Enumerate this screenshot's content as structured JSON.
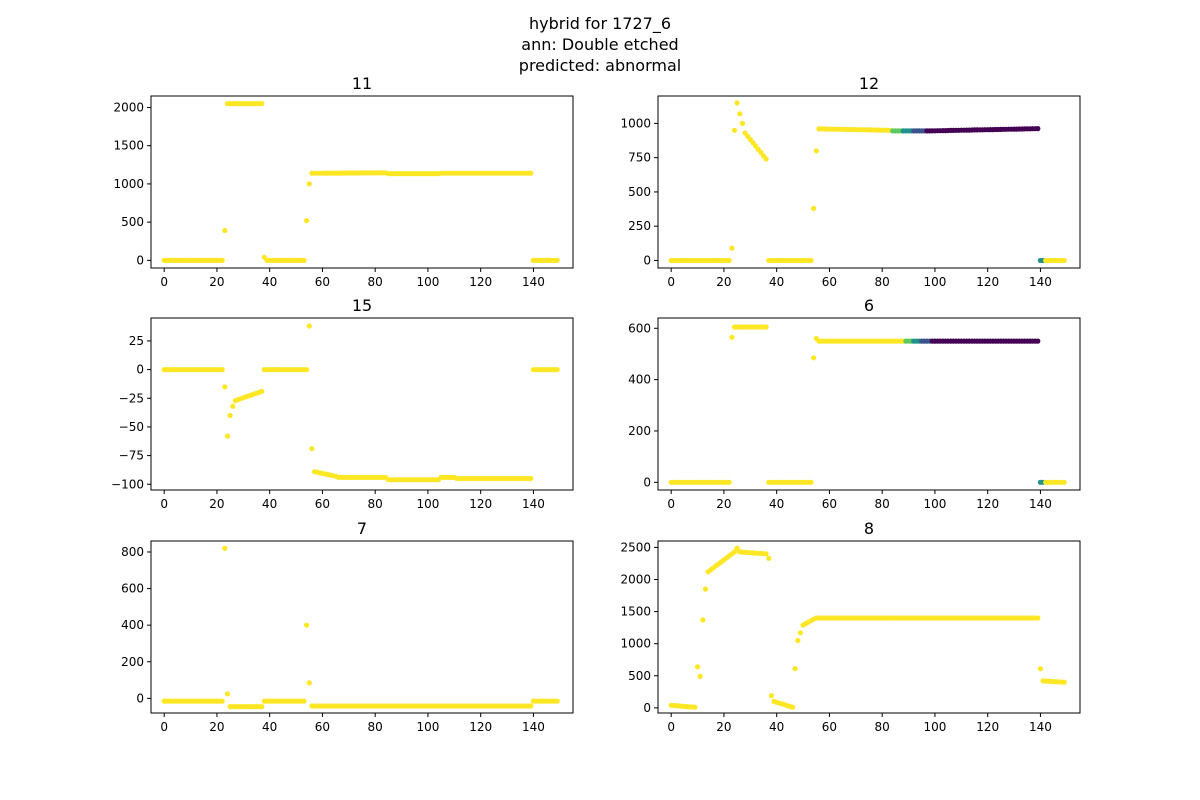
{
  "figure": {
    "title_lines": [
      "hybrid for 1727_6",
      "ann: Double etched",
      "predicted: abnormal"
    ]
  },
  "colors": {
    "yellow": "#fde725",
    "green": "#5ec962",
    "teal": "#21918c",
    "blue": "#3b528b",
    "purple": "#440154",
    "axis": "#000000"
  },
  "chart_data": [
    {
      "type": "scatter",
      "title": "11",
      "xlim": [
        -5,
        155
      ],
      "ylim": [
        -100,
        2150
      ],
      "xticks": [
        0,
        20,
        40,
        60,
        80,
        100,
        120,
        140
      ],
      "yticks": [
        0,
        500,
        1000,
        1500,
        2000
      ],
      "segments": [
        {
          "x0": 0,
          "x1": 22,
          "y0": 0,
          "y1": 0,
          "color": "yellow"
        },
        {
          "x0": 23,
          "x1": 23,
          "y0": 390,
          "y1": 390,
          "color": "yellow"
        },
        {
          "x0": 24,
          "x1": 37,
          "y0": 2050,
          "y1": 2050,
          "color": "yellow"
        },
        {
          "x0": 38,
          "x1": 38,
          "y0": 40,
          "y1": 40,
          "color": "yellow"
        },
        {
          "x0": 39,
          "x1": 53,
          "y0": 0,
          "y1": 0,
          "color": "yellow"
        },
        {
          "x0": 54,
          "x1": 54,
          "y0": 520,
          "y1": 520,
          "color": "yellow"
        },
        {
          "x0": 55,
          "x1": 55,
          "y0": 1000,
          "y1": 1000,
          "color": "yellow"
        },
        {
          "x0": 56,
          "x1": 84,
          "y0": 1140,
          "y1": 1145,
          "color": "yellow"
        },
        {
          "x0": 85,
          "x1": 104,
          "y0": 1135,
          "y1": 1135,
          "color": "yellow"
        },
        {
          "x0": 105,
          "x1": 139,
          "y0": 1140,
          "y1": 1140,
          "color": "yellow"
        },
        {
          "x0": 140,
          "x1": 149,
          "y0": 0,
          "y1": 0,
          "color": "yellow"
        }
      ]
    },
    {
      "type": "scatter",
      "title": "12",
      "xlim": [
        -5,
        155
      ],
      "ylim": [
        -55,
        1200
      ],
      "xticks": [
        0,
        20,
        40,
        60,
        80,
        100,
        120,
        140
      ],
      "yticks": [
        0,
        250,
        500,
        750,
        1000
      ],
      "segments": [
        {
          "x0": 0,
          "x1": 22,
          "y0": 0,
          "y1": 0,
          "color": "yellow"
        },
        {
          "x0": 23,
          "x1": 23,
          "y0": 90,
          "y1": 90,
          "color": "yellow"
        },
        {
          "x0": 24,
          "x1": 24,
          "y0": 950,
          "y1": 950,
          "color": "yellow"
        },
        {
          "x0": 25,
          "x1": 25,
          "y0": 1150,
          "y1": 1150,
          "color": "yellow"
        },
        {
          "x0": 26,
          "x1": 26,
          "y0": 1070,
          "y1": 1070,
          "color": "yellow"
        },
        {
          "x0": 27,
          "x1": 27,
          "y0": 1000,
          "y1": 1000,
          "color": "yellow"
        },
        {
          "x0": 28,
          "x1": 36,
          "y0": 930,
          "y1": 740,
          "color": "yellow"
        },
        {
          "x0": 37,
          "x1": 53,
          "y0": 0,
          "y1": 0,
          "color": "yellow"
        },
        {
          "x0": 54,
          "x1": 54,
          "y0": 380,
          "y1": 380,
          "color": "yellow"
        },
        {
          "x0": 55,
          "x1": 55,
          "y0": 800,
          "y1": 800,
          "color": "yellow"
        },
        {
          "x0": 56,
          "x1": 83,
          "y0": 960,
          "y1": 950,
          "color": "yellow"
        },
        {
          "x0": 84,
          "x1": 87,
          "y0": 945,
          "y1": 945,
          "color": "green"
        },
        {
          "x0": 88,
          "x1": 91,
          "y0": 945,
          "y1": 945,
          "color": "teal"
        },
        {
          "x0": 92,
          "x1": 96,
          "y0": 945,
          "y1": 945,
          "color": "blue"
        },
        {
          "x0": 97,
          "x1": 139,
          "y0": 945,
          "y1": 962,
          "color": "purple"
        },
        {
          "x0": 140,
          "x1": 141,
          "y0": 0,
          "y1": 0,
          "color": "teal"
        },
        {
          "x0": 142,
          "x1": 149,
          "y0": 0,
          "y1": 0,
          "color": "yellow"
        }
      ]
    },
    {
      "type": "scatter",
      "title": "15",
      "xlim": [
        -5,
        155
      ],
      "ylim": [
        -105,
        45
      ],
      "xticks": [
        0,
        20,
        40,
        60,
        80,
        100,
        120,
        140
      ],
      "yticks": [
        -100,
        -75,
        -50,
        -25,
        0,
        25
      ],
      "segments": [
        {
          "x0": 0,
          "x1": 22,
          "y0": 0,
          "y1": 0,
          "color": "yellow"
        },
        {
          "x0": 23,
          "x1": 23,
          "y0": -15,
          "y1": -15,
          "color": "yellow"
        },
        {
          "x0": 24,
          "x1": 24,
          "y0": -58,
          "y1": -58,
          "color": "yellow"
        },
        {
          "x0": 25,
          "x1": 25,
          "y0": -40,
          "y1": -40,
          "color": "yellow"
        },
        {
          "x0": 26,
          "x1": 26,
          "y0": -32,
          "y1": -32,
          "color": "yellow"
        },
        {
          "x0": 27,
          "x1": 37,
          "y0": -27,
          "y1": -19,
          "color": "yellow"
        },
        {
          "x0": 38,
          "x1": 54,
          "y0": 0,
          "y1": 0,
          "color": "yellow"
        },
        {
          "x0": 55,
          "x1": 55,
          "y0": 38,
          "y1": 38,
          "color": "yellow"
        },
        {
          "x0": 56,
          "x1": 56,
          "y0": -69,
          "y1": -69,
          "color": "yellow"
        },
        {
          "x0": 57,
          "x1": 65,
          "y0": -89,
          "y1": -93,
          "color": "yellow"
        },
        {
          "x0": 66,
          "x1": 84,
          "y0": -94,
          "y1": -94,
          "color": "yellow"
        },
        {
          "x0": 85,
          "x1": 104,
          "y0": -96,
          "y1": -96,
          "color": "yellow"
        },
        {
          "x0": 105,
          "x1": 110,
          "y0": -94,
          "y1": -94,
          "color": "yellow"
        },
        {
          "x0": 111,
          "x1": 139,
          "y0": -95,
          "y1": -95,
          "color": "yellow"
        },
        {
          "x0": 140,
          "x1": 149,
          "y0": 0,
          "y1": 0,
          "color": "yellow"
        }
      ]
    },
    {
      "type": "scatter",
      "title": "6",
      "xlim": [
        -5,
        155
      ],
      "ylim": [
        -30,
        640
      ],
      "xticks": [
        0,
        20,
        40,
        60,
        80,
        100,
        120,
        140
      ],
      "yticks": [
        0,
        200,
        400,
        600
      ],
      "segments": [
        {
          "x0": 0,
          "x1": 22,
          "y0": 0,
          "y1": 0,
          "color": "yellow"
        },
        {
          "x0": 23,
          "x1": 23,
          "y0": 565,
          "y1": 565,
          "color": "yellow"
        },
        {
          "x0": 24,
          "x1": 36,
          "y0": 605,
          "y1": 605,
          "color": "yellow"
        },
        {
          "x0": 37,
          "x1": 53,
          "y0": 0,
          "y1": 0,
          "color": "yellow"
        },
        {
          "x0": 54,
          "x1": 54,
          "y0": 485,
          "y1": 485,
          "color": "yellow"
        },
        {
          "x0": 55,
          "x1": 55,
          "y0": 560,
          "y1": 560,
          "color": "yellow"
        },
        {
          "x0": 56,
          "x1": 88,
          "y0": 550,
          "y1": 550,
          "color": "yellow"
        },
        {
          "x0": 89,
          "x1": 91,
          "y0": 550,
          "y1": 550,
          "color": "green"
        },
        {
          "x0": 92,
          "x1": 94,
          "y0": 550,
          "y1": 550,
          "color": "teal"
        },
        {
          "x0": 95,
          "x1": 98,
          "y0": 550,
          "y1": 550,
          "color": "blue"
        },
        {
          "x0": 99,
          "x1": 139,
          "y0": 550,
          "y1": 550,
          "color": "purple"
        },
        {
          "x0": 140,
          "x1": 141,
          "y0": 0,
          "y1": 0,
          "color": "teal"
        },
        {
          "x0": 142,
          "x1": 149,
          "y0": 0,
          "y1": 0,
          "color": "yellow"
        }
      ]
    },
    {
      "type": "scatter",
      "title": "7",
      "xlim": [
        -5,
        155
      ],
      "ylim": [
        -80,
        860
      ],
      "xticks": [
        0,
        20,
        40,
        60,
        80,
        100,
        120,
        140
      ],
      "yticks": [
        0,
        200,
        400,
        600,
        800
      ],
      "segments": [
        {
          "x0": 0,
          "x1": 22,
          "y0": -15,
          "y1": -15,
          "color": "yellow"
        },
        {
          "x0": 23,
          "x1": 23,
          "y0": 820,
          "y1": 820,
          "color": "yellow"
        },
        {
          "x0": 24,
          "x1": 24,
          "y0": 25,
          "y1": 25,
          "color": "yellow"
        },
        {
          "x0": 25,
          "x1": 37,
          "y0": -45,
          "y1": -45,
          "color": "yellow"
        },
        {
          "x0": 38,
          "x1": 53,
          "y0": -15,
          "y1": -15,
          "color": "yellow"
        },
        {
          "x0": 54,
          "x1": 54,
          "y0": 400,
          "y1": 400,
          "color": "yellow"
        },
        {
          "x0": 55,
          "x1": 55,
          "y0": 85,
          "y1": 85,
          "color": "yellow"
        },
        {
          "x0": 56,
          "x1": 139,
          "y0": -42,
          "y1": -42,
          "color": "yellow"
        },
        {
          "x0": 140,
          "x1": 149,
          "y0": -15,
          "y1": -15,
          "color": "yellow"
        }
      ]
    },
    {
      "type": "scatter",
      "title": "8",
      "xlim": [
        -5,
        155
      ],
      "ylim": [
        -80,
        2600
      ],
      "xticks": [
        0,
        20,
        40,
        60,
        80,
        100,
        120,
        140
      ],
      "yticks": [
        0,
        500,
        1000,
        1500,
        2000,
        2500
      ],
      "segments": [
        {
          "x0": 0,
          "x1": 9,
          "y0": 40,
          "y1": 10,
          "color": "yellow"
        },
        {
          "x0": 10,
          "x1": 10,
          "y0": 640,
          "y1": 640,
          "color": "yellow"
        },
        {
          "x0": 11,
          "x1": 11,
          "y0": 490,
          "y1": 490,
          "color": "yellow"
        },
        {
          "x0": 12,
          "x1": 12,
          "y0": 1370,
          "y1": 1370,
          "color": "yellow"
        },
        {
          "x0": 13,
          "x1": 13,
          "y0": 1850,
          "y1": 1850,
          "color": "yellow"
        },
        {
          "x0": 14,
          "x1": 24,
          "y0": 2120,
          "y1": 2430,
          "color": "yellow"
        },
        {
          "x0": 25,
          "x1": 25,
          "y0": 2490,
          "y1": 2490,
          "color": "yellow"
        },
        {
          "x0": 26,
          "x1": 36,
          "y0": 2430,
          "y1": 2400,
          "color": "yellow"
        },
        {
          "x0": 37,
          "x1": 37,
          "y0": 2330,
          "y1": 2330,
          "color": "yellow"
        },
        {
          "x0": 38,
          "x1": 38,
          "y0": 190,
          "y1": 190,
          "color": "yellow"
        },
        {
          "x0": 39,
          "x1": 46,
          "y0": 100,
          "y1": 10,
          "color": "yellow"
        },
        {
          "x0": 47,
          "x1": 47,
          "y0": 610,
          "y1": 610,
          "color": "yellow"
        },
        {
          "x0": 48,
          "x1": 48,
          "y0": 1050,
          "y1": 1050,
          "color": "yellow"
        },
        {
          "x0": 49,
          "x1": 49,
          "y0": 1170,
          "y1": 1170,
          "color": "yellow"
        },
        {
          "x0": 50,
          "x1": 54,
          "y0": 1290,
          "y1": 1380,
          "color": "yellow"
        },
        {
          "x0": 55,
          "x1": 139,
          "y0": 1400,
          "y1": 1400,
          "color": "yellow"
        },
        {
          "x0": 140,
          "x1": 140,
          "y0": 610,
          "y1": 610,
          "color": "yellow"
        },
        {
          "x0": 141,
          "x1": 149,
          "y0": 420,
          "y1": 400,
          "color": "yellow"
        }
      ]
    }
  ]
}
